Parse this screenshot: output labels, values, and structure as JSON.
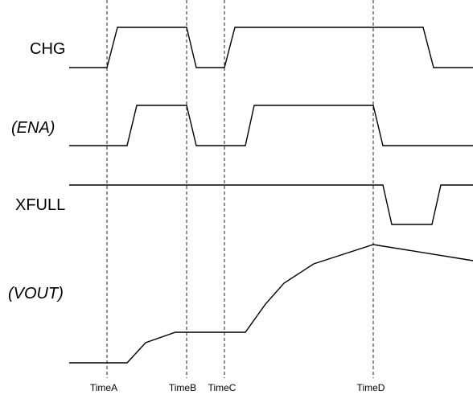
{
  "signals": {
    "chg": "CHG",
    "ena": "(ENA)",
    "xfull": "XFULL",
    "vout": "(VOUT)"
  },
  "times": {
    "a": "TimeA",
    "b": "TimeB",
    "c": "TimeC",
    "d": "TimeD"
  }
}
